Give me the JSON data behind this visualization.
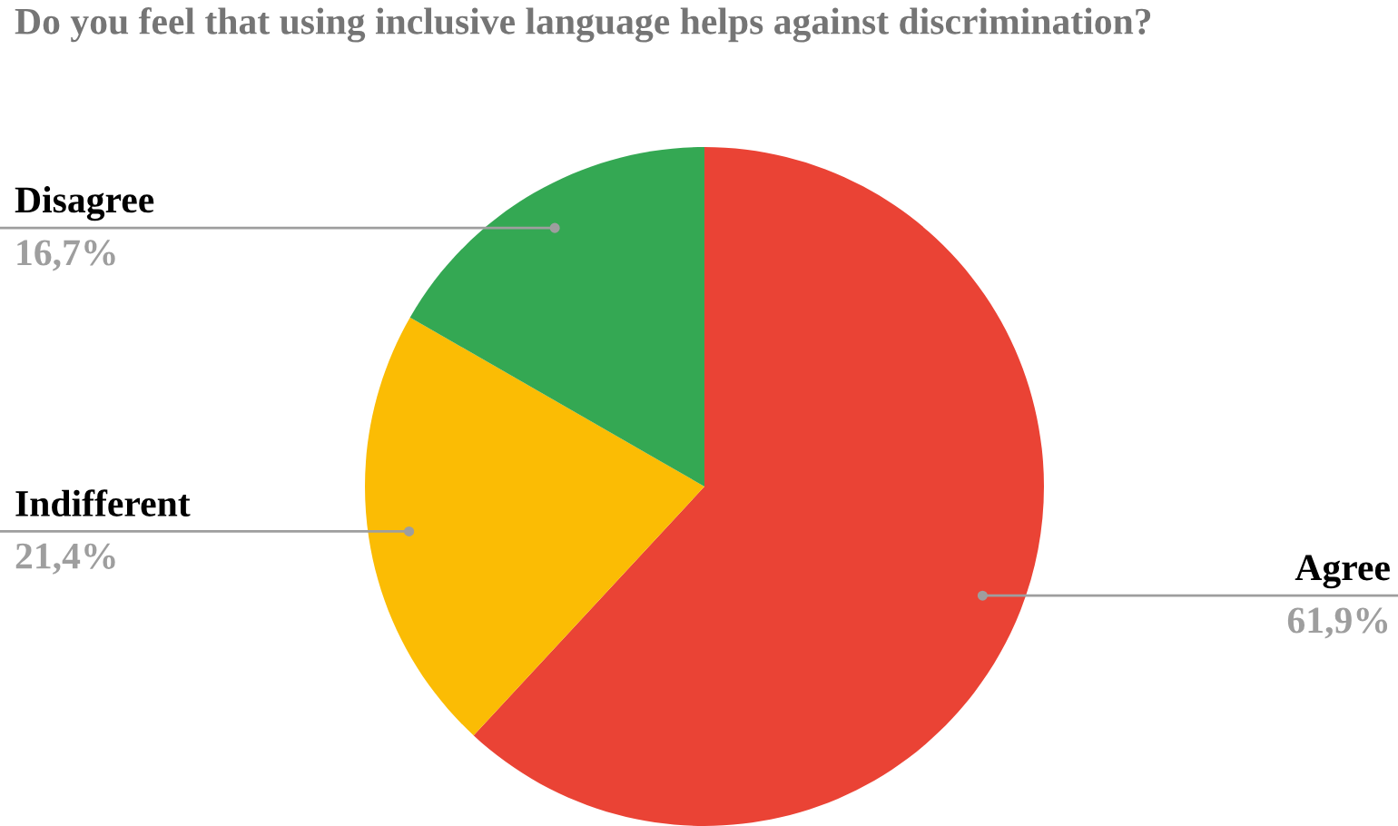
{
  "chart_data": {
    "type": "pie",
    "title": "Do you feel that using inclusive language helps against discrimination?",
    "categories": [
      "Agree",
      "Indifferent",
      "Disagree"
    ],
    "values": [
      61.9,
      21.4,
      16.7
    ],
    "value_labels": [
      "61,9%",
      "21,4%",
      "16,7%"
    ],
    "colors": [
      "#ea4335",
      "#fbbc04",
      "#34a853"
    ],
    "legend": false
  }
}
